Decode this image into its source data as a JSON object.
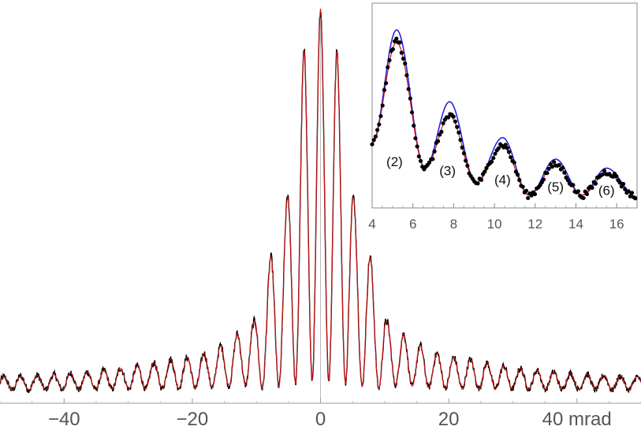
{
  "chart_data": [
    {
      "name": "main",
      "type": "line",
      "title": "",
      "xlabel": "",
      "ylabel": "",
      "x_unit": "mrad",
      "xlim": [
        -50,
        50
      ],
      "ylim": [
        0,
        1
      ],
      "x_ticks": [
        -40,
        -20,
        0,
        20,
        40
      ],
      "x_tick_labels": [
        "−40",
        "−20",
        "0",
        "20",
        "40 mrad"
      ],
      "y_axis_shown": false,
      "grid": false,
      "legend": "none",
      "model": {
        "fringe_period": 2.6,
        "peaks": [
          {
            "x": -23.0,
            "y": 0.085
          },
          {
            "x": -20.4,
            "y": 0.09
          },
          {
            "x": -18.0,
            "y": 0.1
          },
          {
            "x": -15.5,
            "y": 0.12
          },
          {
            "x": -13.0,
            "y": 0.15
          },
          {
            "x": -10.4,
            "y": 0.18
          },
          {
            "x": -7.8,
            "y": 0.35
          },
          {
            "x": -5.2,
            "y": 0.5
          },
          {
            "x": -2.6,
            "y": 0.89
          },
          {
            "x": 0.0,
            "y": 1.0
          },
          {
            "x": 2.6,
            "y": 0.89
          },
          {
            "x": 5.2,
            "y": 0.5
          },
          {
            "x": 7.8,
            "y": 0.35
          },
          {
            "x": 10.4,
            "y": 0.18
          },
          {
            "x": 13.0,
            "y": 0.15
          },
          {
            "x": 15.5,
            "y": 0.12
          },
          {
            "x": 18.0,
            "y": 0.1
          },
          {
            "x": 20.4,
            "y": 0.09
          },
          {
            "x": 23.0,
            "y": 0.085
          }
        ],
        "baseline": 0.03
      },
      "series": [
        {
          "role": "measured",
          "color": "#000000",
          "noise": 0.012
        },
        {
          "role": "fit",
          "color": "#dd1111"
        }
      ]
    },
    {
      "name": "inset",
      "type": "line",
      "title": "",
      "xlabel": "",
      "ylabel": "",
      "xlim": [
        4,
        17
      ],
      "ylim": [
        0,
        1
      ],
      "x_ticks": [
        4,
        6,
        8,
        10,
        12,
        14,
        16
      ],
      "x_tick_labels": [
        "4",
        "6",
        "8",
        "10",
        "12",
        "14",
        "16"
      ],
      "y_axis_shown": false,
      "grid": false,
      "legend": "none",
      "peak_labels": [
        {
          "text": "(2)",
          "x": 5.1,
          "y": 0.17
        },
        {
          "text": "(3)",
          "x": 7.7,
          "y": 0.12
        },
        {
          "text": "(4)",
          "x": 10.4,
          "y": 0.07
        },
        {
          "text": "(5)",
          "x": 13.0,
          "y": 0.03
        },
        {
          "text": "(6)",
          "x": 15.5,
          "y": 0.01
        }
      ],
      "peaks": [
        {
          "x": 5.2,
          "blue": 0.93,
          "red": 0.86,
          "data": 0.87
        },
        {
          "x": 7.8,
          "blue": 0.53,
          "red": 0.45,
          "data": 0.45
        },
        {
          "x": 10.4,
          "blue": 0.33,
          "red": 0.28,
          "data": 0.29
        },
        {
          "x": 13.0,
          "blue": 0.21,
          "red": 0.18,
          "data": 0.18
        },
        {
          "x": 15.5,
          "blue": 0.16,
          "red": 0.13,
          "data": 0.14
        }
      ],
      "minima": [
        {
          "x": 4.0,
          "y": 0.3
        },
        {
          "x": 6.6,
          "y": 0.16
        },
        {
          "x": 9.1,
          "y": 0.08
        },
        {
          "x": 11.7,
          "y": 0.01
        },
        {
          "x": 14.3,
          "y": 0.01
        },
        {
          "x": 17.0,
          "y": 0.0
        }
      ],
      "series": [
        {
          "role": "model-blue",
          "color": "#1a1adf"
        },
        {
          "role": "model-red",
          "color": "#dd1111"
        },
        {
          "role": "data-points",
          "color": "#000000",
          "spacing": 0.085
        }
      ]
    }
  ]
}
